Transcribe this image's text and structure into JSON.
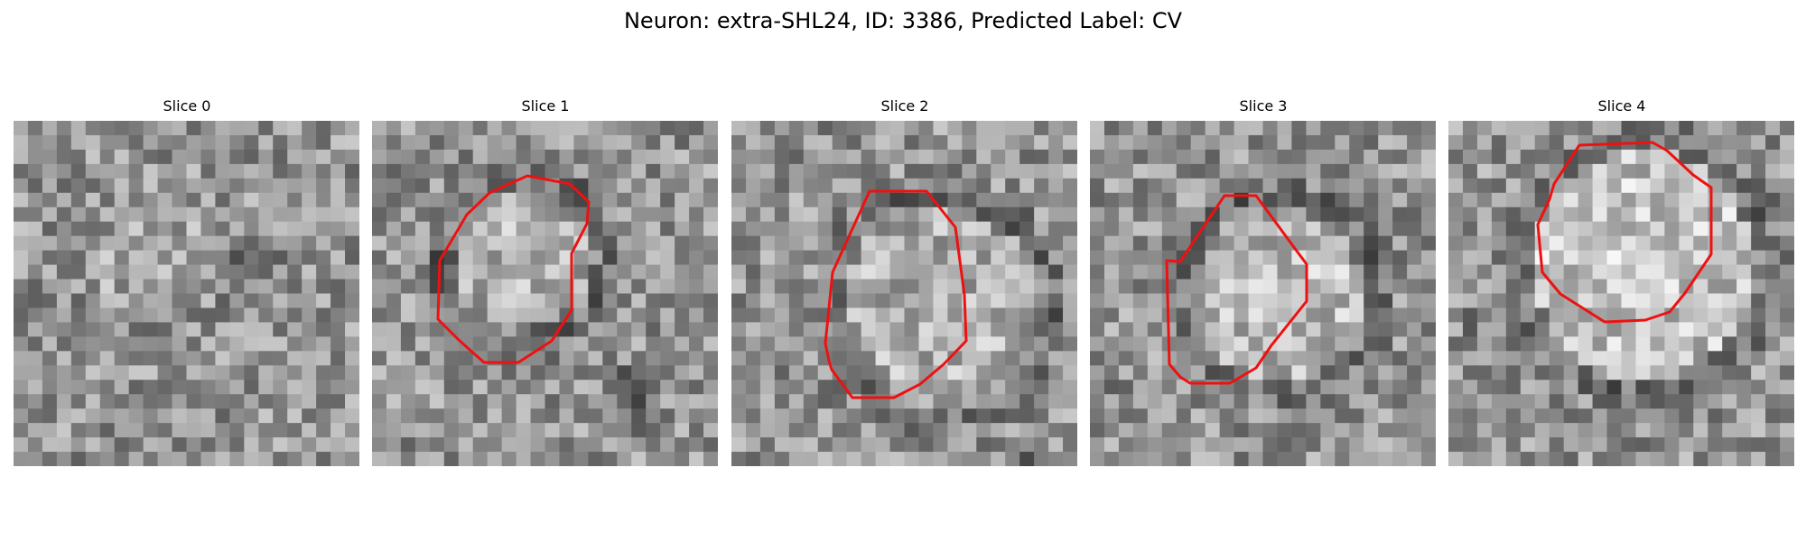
{
  "title": "Neuron: extra-SHL24, ID: 3386, Predicted Label: CV",
  "panels": [
    {
      "title": "Slice 0",
      "contour": false
    },
    {
      "title": "Slice 1",
      "contour": true
    },
    {
      "title": "Slice 2",
      "contour": true
    },
    {
      "title": "Slice 3",
      "contour": true
    },
    {
      "title": "Slice 4",
      "contour": true
    }
  ],
  "colors": {
    "contour": "#ee1111"
  }
}
